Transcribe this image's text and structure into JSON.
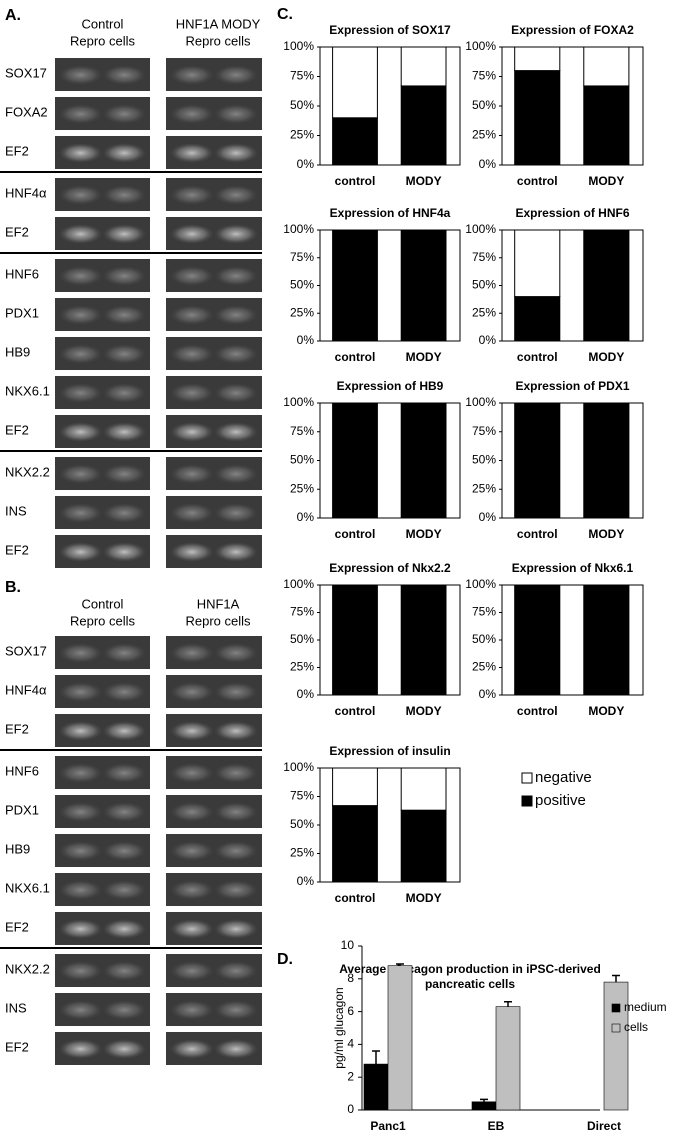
{
  "gels": [
    {
      "label": "A.",
      "columns": [
        [
          "Control",
          "Repro cells"
        ],
        [
          "HNF1A MODY",
          "Repro cells"
        ]
      ],
      "groups": [
        [
          "SOX17",
          "FOXA2",
          "EF2"
        ],
        [
          "HNF4α",
          "EF2"
        ],
        [
          "HNF6",
          "PDX1",
          "HB9",
          "NKX6.1",
          "EF2"
        ],
        [
          "NKX2.2",
          "INS",
          "EF2"
        ]
      ]
    },
    {
      "label": "B.",
      "columns": [
        [
          "Control",
          "Repro cells"
        ],
        [
          "HNF1A",
          "Repro cells"
        ]
      ],
      "groups": [
        [
          "SOX17",
          "HNF4α",
          "EF2"
        ],
        [
          "HNF6",
          "PDX1",
          "HB9",
          "NKX6.1",
          "EF2"
        ],
        [
          "NKX2.2",
          "INS",
          "EF2"
        ]
      ]
    }
  ],
  "panel_labels": [
    "C.",
    "D."
  ],
  "chart_data": [
    {
      "type": "stacked-bar",
      "title": "Expression of SOX17",
      "categories": [
        "control",
        "MODY"
      ],
      "ylim": [
        0,
        100
      ],
      "yticks": [
        {
          "value": 0,
          "label": "0%"
        },
        {
          "value": 25,
          "label": "25%"
        },
        {
          "value": 50,
          "label": "50%"
        },
        {
          "value": 75,
          "label": "75%"
        },
        {
          "value": 100,
          "label": "100%"
        }
      ],
      "series": [
        {
          "color": "#000000",
          "values": [
            40,
            67
          ]
        },
        {
          "color": "#ffffff",
          "values": [
            60,
            33
          ]
        }
      ]
    },
    {
      "type": "stacked-bar",
      "title": "Expression of FOXA2",
      "categories": [
        "control",
        "MODY"
      ],
      "ylim": [
        0,
        100
      ],
      "yticks": [
        {
          "value": 0,
          "label": "0%"
        },
        {
          "value": 25,
          "label": "25%"
        },
        {
          "value": 50,
          "label": "50%"
        },
        {
          "value": 75,
          "label": "75%"
        },
        {
          "value": 100,
          "label": "100%"
        }
      ],
      "series": [
        {
          "color": "#000000",
          "values": [
            80,
            67
          ]
        },
        {
          "color": "#ffffff",
          "values": [
            20,
            33
          ]
        }
      ]
    },
    {
      "type": "stacked-bar",
      "title": "Expression of HNF4a",
      "categories": [
        "control",
        "MODY"
      ],
      "ylim": [
        0,
        100
      ],
      "yticks": [
        {
          "value": 0,
          "label": "0%"
        },
        {
          "value": 25,
          "label": "25%"
        },
        {
          "value": 50,
          "label": "50%"
        },
        {
          "value": 75,
          "label": "75%"
        },
        {
          "value": 100,
          "label": "100%"
        }
      ],
      "series": [
        {
          "color": "#000000",
          "values": [
            100,
            100
          ]
        },
        {
          "color": "#ffffff",
          "values": [
            0,
            0
          ]
        }
      ]
    },
    {
      "type": "stacked-bar",
      "title": "Expression of HNF6",
      "categories": [
        "control",
        "MODY"
      ],
      "ylim": [
        0,
        100
      ],
      "yticks": [
        {
          "value": 0,
          "label": "0%"
        },
        {
          "value": 25,
          "label": "25%"
        },
        {
          "value": 50,
          "label": "50%"
        },
        {
          "value": 75,
          "label": "75%"
        },
        {
          "value": 100,
          "label": "100%"
        }
      ],
      "series": [
        {
          "color": "#000000",
          "values": [
            40,
            100
          ]
        },
        {
          "color": "#ffffff",
          "values": [
            60,
            0
          ]
        }
      ]
    },
    {
      "type": "stacked-bar",
      "title": "Expression of HB9",
      "categories": [
        "control",
        "MODY"
      ],
      "ylim": [
        0,
        100
      ],
      "yticks": [
        {
          "value": 0,
          "label": "0%"
        },
        {
          "value": 25,
          "label": "25%"
        },
        {
          "value": 50,
          "label": "50%"
        },
        {
          "value": 75,
          "label": "75%"
        },
        {
          "value": 100,
          "label": "100%"
        }
      ],
      "series": [
        {
          "color": "#000000",
          "values": [
            100,
            100
          ]
        },
        {
          "color": "#ffffff",
          "values": [
            0,
            0
          ]
        }
      ]
    },
    {
      "type": "stacked-bar",
      "title": "Expression of PDX1",
      "categories": [
        "control",
        "MODY"
      ],
      "ylim": [
        0,
        100
      ],
      "yticks": [
        {
          "value": 0,
          "label": "0%"
        },
        {
          "value": 25,
          "label": "25%"
        },
        {
          "value": 50,
          "label": "50%"
        },
        {
          "value": 75,
          "label": "75%"
        },
        {
          "value": 100,
          "label": "100%"
        }
      ],
      "series": [
        {
          "color": "#000000",
          "values": [
            100,
            100
          ]
        },
        {
          "color": "#ffffff",
          "values": [
            0,
            0
          ]
        }
      ]
    },
    {
      "type": "stacked-bar",
      "title": "Expression of Nkx2.2",
      "categories": [
        "control",
        "MODY"
      ],
      "ylim": [
        0,
        100
      ],
      "yticks": [
        {
          "value": 0,
          "label": "0%"
        },
        {
          "value": 25,
          "label": "25%"
        },
        {
          "value": 50,
          "label": "50%"
        },
        {
          "value": 75,
          "label": "75%"
        },
        {
          "value": 100,
          "label": "100%"
        }
      ],
      "series": [
        {
          "color": "#000000",
          "values": [
            100,
            100
          ]
        },
        {
          "color": "#ffffff",
          "values": [
            0,
            0
          ]
        }
      ]
    },
    {
      "type": "stacked-bar",
      "title": "Expression of Nkx6.1",
      "categories": [
        "control",
        "MODY"
      ],
      "ylim": [
        0,
        100
      ],
      "yticks": [
        {
          "value": 0,
          "label": "0%"
        },
        {
          "value": 25,
          "label": "25%"
        },
        {
          "value": 50,
          "label": "50%"
        },
        {
          "value": 75,
          "label": "75%"
        },
        {
          "value": 100,
          "label": "100%"
        }
      ],
      "series": [
        {
          "color": "#000000",
          "values": [
            100,
            100
          ]
        },
        {
          "color": "#ffffff",
          "values": [
            0,
            0
          ]
        }
      ]
    },
    {
      "type": "stacked-bar",
      "title": "Expression of insulin",
      "categories": [
        "control",
        "MODY"
      ],
      "ylim": [
        0,
        100
      ],
      "yticks": [
        {
          "value": 0,
          "label": "0%"
        },
        {
          "value": 25,
          "label": "25%"
        },
        {
          "value": 50,
          "label": "50%"
        },
        {
          "value": 75,
          "label": "75%"
        },
        {
          "value": 100,
          "label": "100%"
        }
      ],
      "series": [
        {
          "name": "positive",
          "color": "#000000",
          "values": [
            67,
            63
          ]
        },
        {
          "name": "negative",
          "color": "#ffffff",
          "values": [
            33,
            37
          ]
        }
      ]
    },
    {
      "type": "bar",
      "title": [
        "Average glucagon production in iPSC-derived",
        "pancreatic cells"
      ],
      "y_label": "pg/ml glucagon",
      "categories": [
        "Panc1",
        "EB",
        "Direct"
      ],
      "ylim": [
        0,
        10
      ],
      "yticks": [
        0,
        2,
        4,
        6,
        8,
        10
      ],
      "series": [
        {
          "name": "medium",
          "color": "#000000",
          "values": [
            2.8,
            0.5,
            0
          ],
          "errors": [
            0.8,
            0.15,
            null
          ]
        },
        {
          "name": "cells",
          "color": "#bfbfbf",
          "values": [
            8.8,
            6.3,
            7.8
          ],
          "errors": [
            0.1,
            0.3,
            0.4
          ]
        }
      ]
    }
  ]
}
